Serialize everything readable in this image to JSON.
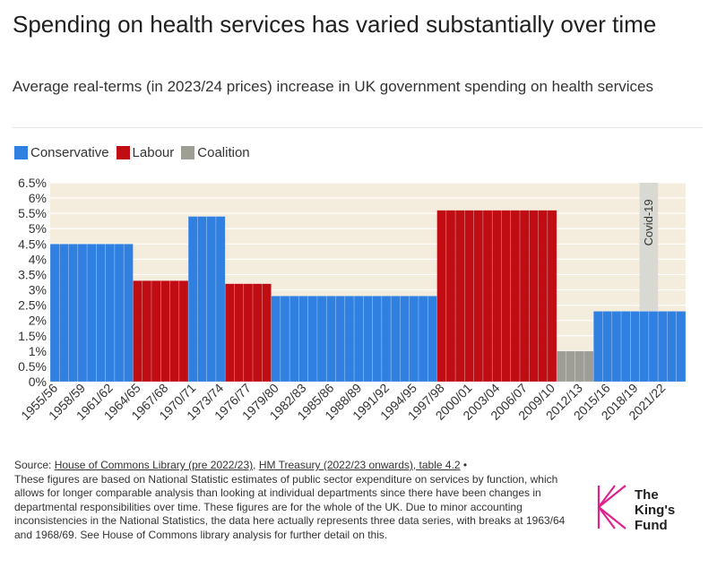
{
  "title": "Spending on health services has varied substantially over time",
  "subtitle": "Average real-terms (in 2023/24 prices) increase in UK government spending on health services",
  "legend": [
    {
      "label": "Conservative",
      "color": "#2f80e0"
    },
    {
      "label": "Labour",
      "color": "#c00c13"
    },
    {
      "label": "Coalition",
      "color": "#9e9e96"
    }
  ],
  "chart_data": {
    "type": "bar",
    "title": "Average real-terms (in 2023/24 prices) increase in UK government spending on health services",
    "xlabel": "",
    "ylabel": "",
    "ylim": [
      0,
      6.5
    ],
    "yticks": [
      "0%",
      "0.5%",
      "1%",
      "1.5%",
      "2%",
      "2.5%",
      "3%",
      "3.5%",
      "4%",
      "4.5%",
      "5%",
      "5.5%",
      "6%",
      "6.5%"
    ],
    "tick_labels": [
      "1955/56",
      "1958/59",
      "1961/62",
      "1964/65",
      "1967/68",
      "1970/71",
      "1973/74",
      "1976/77",
      "1979/80",
      "1982/83",
      "1985/86",
      "1988/89",
      "1991/92",
      "1994/95",
      "1997/98",
      "2000/01",
      "2003/04",
      "2006/07",
      "2009/10",
      "2012/13",
      "2015/16",
      "2018/19",
      "2021/22"
    ],
    "colors": {
      "Conservative": "#2f80e0",
      "Labour": "#c00c13",
      "Coalition": "#9e9e96",
      "background": "#f4ecdd",
      "covid_band": "#d9d9d3"
    },
    "segments": [
      {
        "party": "Conservative",
        "start": 1955,
        "end": 1964,
        "value": 4.5
      },
      {
        "party": "Labour",
        "start": 1964,
        "end": 1970,
        "value": 3.3
      },
      {
        "party": "Conservative",
        "start": 1970,
        "end": 1974,
        "value": 5.4
      },
      {
        "party": "Labour",
        "start": 1974,
        "end": 1979,
        "value": 3.2
      },
      {
        "party": "Conservative",
        "start": 1979,
        "end": 1997,
        "value": 2.8
      },
      {
        "party": "Labour",
        "start": 1997,
        "end": 2010,
        "value": 5.6
      },
      {
        "party": "Coalition",
        "start": 2010,
        "end": 2014,
        "value": 1.0
      },
      {
        "party": "Conservative",
        "start": 2014,
        "end": 2024,
        "value": 2.3
      }
    ],
    "year_range": [
      1955,
      2024
    ],
    "annotations": [
      {
        "text": "Covid-19",
        "start": 2019,
        "end": 2021
      }
    ]
  },
  "notes": {
    "source_prefix": "Source: ",
    "link1": "House of Commons Library (pre 2022/23)",
    "sep": ", ",
    "link2": "HM Treasury (2022/23 onwards), table 4.2",
    "bullet": " •",
    "body": "These figures are based on National Statistic estimates of public sector expenditure on services by function, which allows for longer comparable analysis than looking at individual departments since there have been changes in departmental responsibilities over time. These figures are for the whole of the UK. Due to minor accounting inconsistencies in the National Statistics, the data here actually represents three data series, with breaks at 1963/64 and 1968/69. See House of Commons library analysis for further detail on this."
  },
  "logo": {
    "line1": "The",
    "line2": "King's",
    "line3": "Fund",
    "color": "#e0218a"
  }
}
